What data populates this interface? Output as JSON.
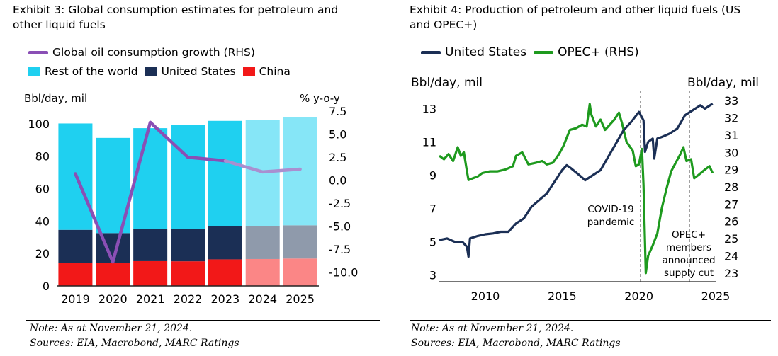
{
  "exhibit3": {
    "title_line1": "Exhibit 3: Global consumption estimates for petroleum and",
    "title_line2": "other liquid fuels",
    "note": "Note: As at November 21, 2024.",
    "sources": "Sources: EIA, Macrobond, MARC Ratings"
  },
  "exhibit4": {
    "title_line1": "Exhibit 4: Production of petroleum and other liquid fuels (US",
    "title_line2": "and OPEC+)",
    "note": "Note: As at November 21, 2024.",
    "sources": "Sources: EIA, Macrobond, MARC Ratings"
  },
  "chart_data": [
    {
      "type": "bar",
      "stacked": true,
      "title": "Exhibit 3: Global consumption estimates for petroleum and other liquid fuels",
      "ylabel": "Bbl/day, mil",
      "ylabel_right": "% y-o-y",
      "categories": [
        "2019",
        "2020",
        "2021",
        "2022",
        "2023",
        "2024",
        "2025"
      ],
      "forecast_from": "2024",
      "ylim": [
        0,
        110
      ],
      "yticks": [
        0,
        20,
        40,
        60,
        80,
        100
      ],
      "ylim_right": [
        -11.5,
        7.9
      ],
      "yticks_right": [
        "7.5",
        "5.0",
        "2.5",
        "0.0",
        "-2.5",
        "-5.0",
        "-7.5",
        "-10.0"
      ],
      "colors": {
        "rest": "#1fd0f0",
        "us": "#1b2f55",
        "china": "#f21818",
        "growth": "#8a4fb5",
        "rest_f": "#86e6f7",
        "us_f": "#8f9aab",
        "china_f": "#fb8686"
      },
      "series": [
        {
          "name": "China",
          "values": [
            14.1,
            14.4,
            15.3,
            15.2,
            16.4,
            16.6,
            16.9
          ]
        },
        {
          "name": "United States",
          "values": [
            20.5,
            18.2,
            19.9,
            20.0,
            20.4,
            20.5,
            20.5
          ]
        },
        {
          "name": "Rest of the world",
          "values": [
            65.6,
            58.7,
            62.1,
            64.3,
            65.0,
            65.4,
            66.6
          ]
        },
        {
          "name": "Global oil consumption growth (RHS)",
          "axis": "right",
          "type": "line",
          "values": [
            0.7,
            -8.9,
            6.3,
            2.5,
            2.1,
            0.9,
            1.2
          ]
        }
      ],
      "legend": {
        "line": "Global oil consumption growth (RHS)",
        "rest": "Rest of the world",
        "us": "United States",
        "china": "China"
      },
      "legend_position": "top-left"
    },
    {
      "type": "line",
      "title": "Exhibit 4: Production of petroleum and other liquid fuels (US and OPEC+)",
      "ylabel": "Bbl/day, mil",
      "ylabel_right": "Bbl/day, mil",
      "xlim": [
        2007,
        2025
      ],
      "xticks": [
        "2010",
        "2015",
        "2020",
        "2025"
      ],
      "ylim": [
        2.6,
        14.0
      ],
      "yticks": [
        "3",
        "5",
        "7",
        "9",
        "11",
        "13"
      ],
      "ylim_right": [
        22.5,
        33.5
      ],
      "yticks_right": [
        "23",
        "24",
        "25",
        "26",
        "27",
        "28",
        "29",
        "30",
        "31",
        "32",
        "33"
      ],
      "colors": {
        "us": "#1b2f55",
        "opec": "#1e9a1e",
        "vline": "#8c8c8c"
      },
      "vlines": [
        2020.1,
        2023.3
      ],
      "annotations": [
        {
          "lines": [
            "COVID-19",
            "pandemic"
          ]
        },
        {
          "lines": [
            "OPEC+",
            "members",
            "announced",
            "supply cut"
          ]
        }
      ],
      "legend_position": "top-left",
      "series": [
        {
          "name": "United States",
          "axis": "left",
          "points": [
            [
              2007.0,
              5.1
            ],
            [
              2007.5,
              5.2
            ],
            [
              2008.0,
              5.0
            ],
            [
              2008.5,
              5.0
            ],
            [
              2008.8,
              4.7
            ],
            [
              2008.9,
              4.1
            ],
            [
              2009.0,
              5.2
            ],
            [
              2009.5,
              5.35
            ],
            [
              2010.0,
              5.45
            ],
            [
              2010.5,
              5.5
            ],
            [
              2011.0,
              5.6
            ],
            [
              2011.5,
              5.6
            ],
            [
              2012.0,
              6.1
            ],
            [
              2012.5,
              6.4
            ],
            [
              2013.0,
              7.1
            ],
            [
              2013.5,
              7.5
            ],
            [
              2014.0,
              7.9
            ],
            [
              2014.5,
              8.6
            ],
            [
              2015.0,
              9.3
            ],
            [
              2015.3,
              9.6
            ],
            [
              2015.6,
              9.4
            ],
            [
              2016.0,
              9.1
            ],
            [
              2016.5,
              8.7
            ],
            [
              2017.0,
              9.0
            ],
            [
              2017.5,
              9.3
            ],
            [
              2018.0,
              10.1
            ],
            [
              2018.5,
              10.9
            ],
            [
              2019.0,
              11.7
            ],
            [
              2019.5,
              12.2
            ],
            [
              2020.0,
              12.8
            ],
            [
              2020.3,
              12.3
            ],
            [
              2020.4,
              10.4
            ],
            [
              2020.6,
              11.0
            ],
            [
              2020.9,
              11.2
            ],
            [
              2021.0,
              10.0
            ],
            [
              2021.2,
              11.2
            ],
            [
              2021.5,
              11.3
            ],
            [
              2022.0,
              11.5
            ],
            [
              2022.5,
              11.8
            ],
            [
              2023.0,
              12.6
            ],
            [
              2023.5,
              12.9
            ],
            [
              2024.0,
              13.2
            ],
            [
              2024.3,
              13.0
            ],
            [
              2024.8,
              13.3
            ]
          ]
        },
        {
          "name": "OPEC+ (RHS)",
          "axis": "right",
          "points": [
            [
              2007.0,
              29.8
            ],
            [
              2007.3,
              29.6
            ],
            [
              2007.6,
              29.9
            ],
            [
              2007.9,
              29.5
            ],
            [
              2008.2,
              30.3
            ],
            [
              2008.4,
              29.8
            ],
            [
              2008.6,
              30.0
            ],
            [
              2008.8,
              28.9
            ],
            [
              2008.9,
              28.4
            ],
            [
              2009.2,
              28.5
            ],
            [
              2009.5,
              28.6
            ],
            [
              2009.8,
              28.8
            ],
            [
              2010.3,
              28.9
            ],
            [
              2010.8,
              28.9
            ],
            [
              2011.3,
              29.0
            ],
            [
              2011.8,
              29.2
            ],
            [
              2012.0,
              29.8
            ],
            [
              2012.4,
              30.0
            ],
            [
              2012.8,
              29.3
            ],
            [
              2013.3,
              29.4
            ],
            [
              2013.7,
              29.5
            ],
            [
              2014.0,
              29.3
            ],
            [
              2014.4,
              29.4
            ],
            [
              2014.8,
              29.9
            ],
            [
              2015.1,
              30.4
            ],
            [
              2015.5,
              31.3
            ],
            [
              2015.9,
              31.4
            ],
            [
              2016.3,
              31.6
            ],
            [
              2016.6,
              31.5
            ],
            [
              2016.8,
              32.8
            ],
            [
              2016.9,
              32.2
            ],
            [
              2017.2,
              31.5
            ],
            [
              2017.5,
              31.9
            ],
            [
              2017.8,
              31.3
            ],
            [
              2018.1,
              31.6
            ],
            [
              2018.4,
              31.9
            ],
            [
              2018.7,
              32.3
            ],
            [
              2018.9,
              31.7
            ],
            [
              2019.2,
              30.6
            ],
            [
              2019.6,
              30.1
            ],
            [
              2019.8,
              29.2
            ],
            [
              2020.0,
              29.3
            ],
            [
              2020.2,
              30.2
            ],
            [
              2020.3,
              28.1
            ],
            [
              2020.45,
              23.0
            ],
            [
              2020.6,
              24.0
            ],
            [
              2020.9,
              24.6
            ],
            [
              2021.2,
              25.3
            ],
            [
              2021.5,
              26.8
            ],
            [
              2021.8,
              27.9
            ],
            [
              2022.1,
              28.9
            ],
            [
              2022.4,
              29.4
            ],
            [
              2022.7,
              29.9
            ],
            [
              2022.9,
              30.3
            ],
            [
              2023.1,
              29.5
            ],
            [
              2023.4,
              29.6
            ],
            [
              2023.6,
              28.5
            ],
            [
              2023.9,
              28.7
            ],
            [
              2024.3,
              29.0
            ],
            [
              2024.6,
              29.2
            ],
            [
              2024.8,
              28.8
            ]
          ]
        }
      ]
    }
  ]
}
